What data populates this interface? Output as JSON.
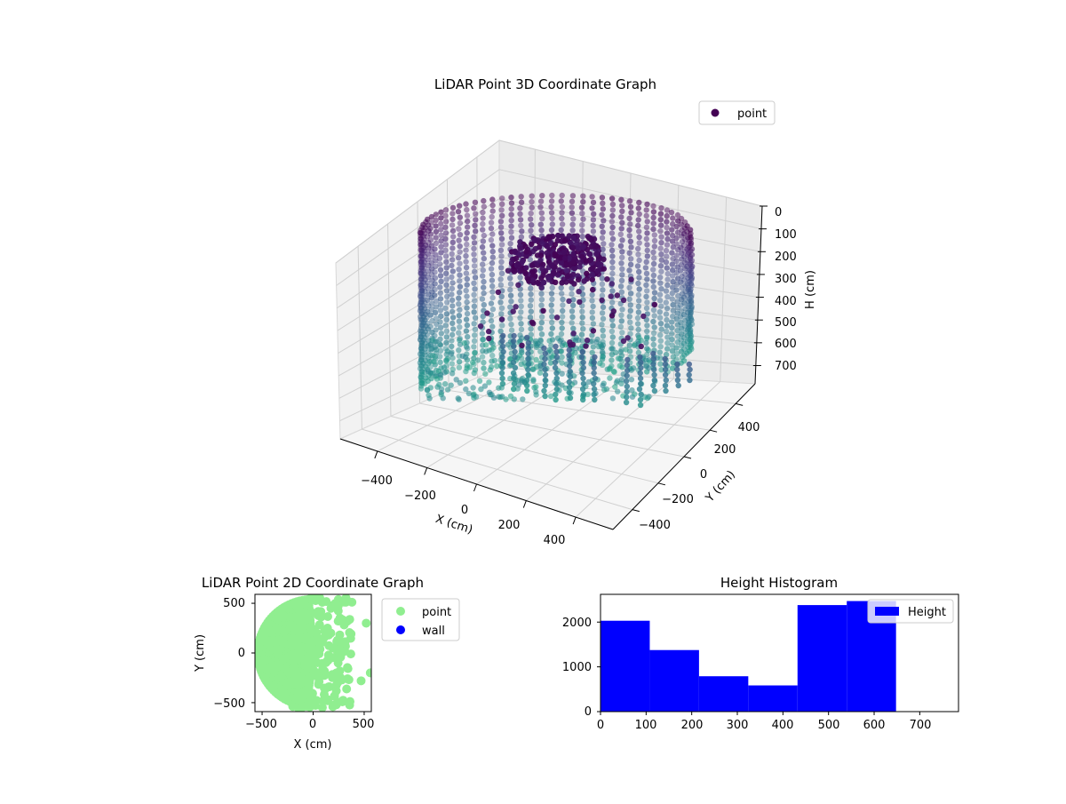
{
  "chart_data": [
    {
      "type": "scatter",
      "projection": "3d",
      "title": "LiDAR Point 3D Coordinate Graph",
      "xlabel": "X (cm)",
      "ylabel": "Y (cm)",
      "zlabel": "H (cm)",
      "x_ticks": [
        "−400",
        "−200",
        "0",
        "200",
        "400"
      ],
      "y_ticks": [
        "−400",
        "−200",
        "0",
        "200",
        "400"
      ],
      "z_ticks": [
        "0",
        "100",
        "200",
        "300",
        "400",
        "500",
        "600",
        "700"
      ],
      "xlim": [
        -550,
        550
      ],
      "ylim": [
        -550,
        550
      ],
      "zlim": [
        0,
        780
      ],
      "z_inverted": true,
      "grid": true,
      "legend": {
        "position": "top-right",
        "entries": [
          {
            "label": "point",
            "color": "#440154"
          }
        ]
      },
      "colormap": "viridis"
    },
    {
      "type": "scatter",
      "title": "LiDAR Point 2D Coordinate Graph",
      "xlabel": "X (cm)",
      "ylabel": "Y (cm)",
      "x_ticks": [
        "−500",
        "0",
        "500"
      ],
      "y_ticks": [
        "−500",
        "0",
        "500"
      ],
      "xlim": [
        -570,
        570
      ],
      "ylim": [
        -590,
        590
      ],
      "grid": false,
      "legend": {
        "position": "outside-right",
        "entries": [
          {
            "label": "point",
            "color": "#90ee90"
          },
          {
            "label": "wall",
            "color": "#0000ff"
          }
        ]
      },
      "series": [
        {
          "name": "point",
          "color": "#90ee90"
        }
      ]
    },
    {
      "type": "bar",
      "subtype": "histogram",
      "title": "Height Histogram",
      "x_ticks": [
        "0",
        "100",
        "200",
        "300",
        "400",
        "500",
        "600",
        "700"
      ],
      "y_ticks": [
        "0",
        "1000",
        "2000"
      ],
      "xlim": [
        0,
        785
      ],
      "ylim": [
        0,
        2620
      ],
      "bins": [
        {
          "start": 0,
          "end": 108,
          "count": 2030
        },
        {
          "start": 108,
          "end": 216,
          "count": 1375
        },
        {
          "start": 216,
          "end": 324,
          "count": 790
        },
        {
          "start": 324,
          "end": 432,
          "count": 585
        },
        {
          "start": 432,
          "end": 540,
          "count": 2380
        },
        {
          "start": 540,
          "end": 648,
          "count": 2470
        }
      ],
      "bar_color": "#0000ff",
      "legend": {
        "position": "upper-right",
        "entries": [
          {
            "label": "Height",
            "color": "#0000ff"
          }
        ]
      }
    }
  ]
}
